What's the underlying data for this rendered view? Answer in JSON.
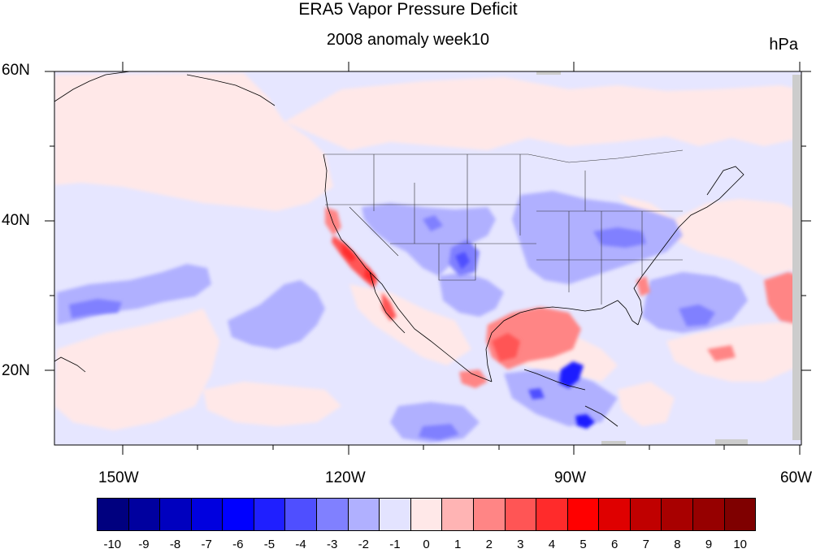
{
  "title": "ERA5 Vapor Pressure Deficit",
  "subtitle": "2008 anomaly week10",
  "units": "hPa",
  "lat_labels": [
    "60N",
    "40N",
    "20N"
  ],
  "lon_labels": [
    "150W",
    "120W",
    "90W",
    "60W"
  ],
  "colorbar": {
    "labels": [
      "-10",
      "-9",
      "-8",
      "-7",
      "-6",
      "-5",
      "-4",
      "-3",
      "-2",
      "-1",
      "0",
      "1",
      "2",
      "3",
      "4",
      "5",
      "6",
      "7",
      "8",
      "9",
      "10"
    ],
    "colors": [
      "#00007f",
      "#00009f",
      "#0000bf",
      "#0000df",
      "#0000ff",
      "#1f1fff",
      "#4f4fff",
      "#8080ff",
      "#b0b0ff",
      "#e3e3ff",
      "#ffe8e8",
      "#ffb4b4",
      "#ff8585",
      "#ff5555",
      "#ff2b2b",
      "#ff0000",
      "#df0000",
      "#c00000",
      "#a80000",
      "#960000",
      "#7f0000"
    ]
  },
  "map": {
    "domain_lon": [
      -160,
      -60
    ],
    "domain_lat": [
      10,
      60
    ],
    "background_anomaly_color": "#e6e6ff"
  }
}
